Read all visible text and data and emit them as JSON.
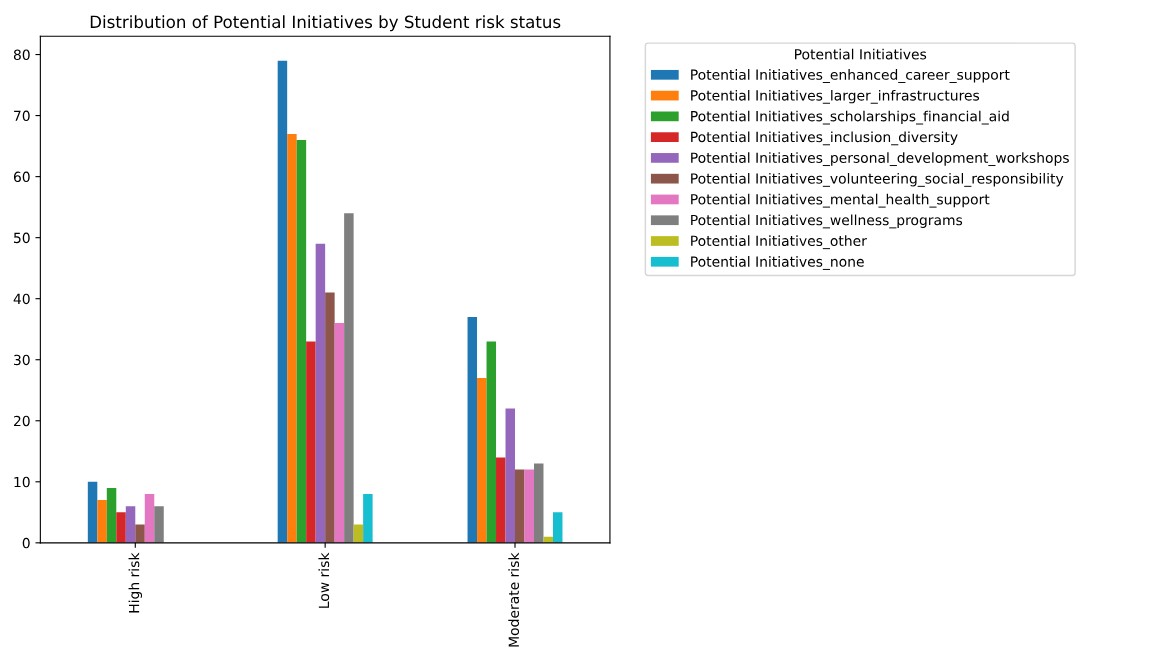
{
  "chart_data": {
    "type": "bar",
    "title": "Distribution of Potential Initiatives by Student risk status",
    "legend_title": "Potential Initiatives",
    "legend": "top right",
    "categories": [
      "High risk",
      "Low risk",
      "Moderate risk"
    ],
    "ylim": [
      0,
      83
    ],
    "yticks": [
      0,
      10,
      20,
      30,
      40,
      50,
      60,
      70,
      80
    ],
    "grid": false,
    "series": [
      {
        "name": "Potential Initiatives_enhanced_career_support",
        "color": "#1f77b4",
        "values": [
          10,
          79,
          37
        ]
      },
      {
        "name": "Potential Initiatives_larger_infrastructures",
        "color": "#ff7f0e",
        "values": [
          7,
          67,
          27
        ]
      },
      {
        "name": "Potential Initiatives_scholarships_financial_aid",
        "color": "#2ca02c",
        "values": [
          9,
          66,
          33
        ]
      },
      {
        "name": "Potential Initiatives_inclusion_diversity",
        "color": "#d62728",
        "values": [
          5,
          33,
          14
        ]
      },
      {
        "name": "Potential Initiatives_personal_development_workshops",
        "color": "#9467bd",
        "values": [
          6,
          49,
          22
        ]
      },
      {
        "name": "Potential Initiatives_volunteering_social_responsibility",
        "color": "#8c564b",
        "values": [
          3,
          41,
          12
        ]
      },
      {
        "name": "Potential Initiatives_mental_health_support",
        "color": "#e377c2",
        "values": [
          8,
          36,
          12
        ]
      },
      {
        "name": "Potential Initiatives_wellness_programs",
        "color": "#7f7f7f",
        "values": [
          6,
          54,
          13
        ]
      },
      {
        "name": "Potential Initiatives_other",
        "color": "#bcbd22",
        "values": [
          0,
          3,
          1
        ]
      },
      {
        "name": "Potential Initiatives_none",
        "color": "#17becf",
        "values": [
          0,
          8,
          5
        ]
      }
    ]
  }
}
